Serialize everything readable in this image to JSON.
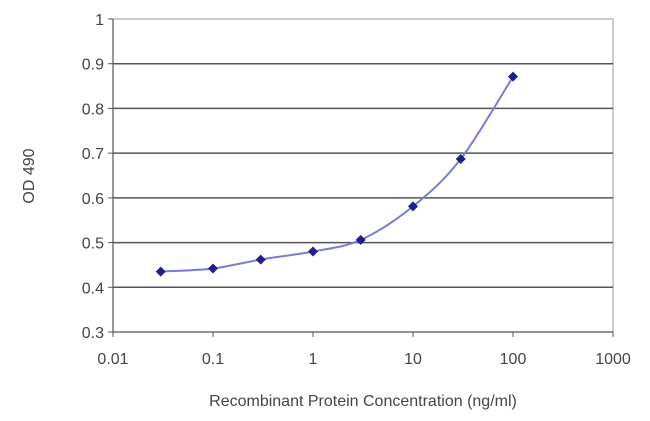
{
  "chart_data": {
    "type": "line",
    "x": [
      0.03,
      0.1,
      0.3,
      1,
      3,
      10,
      30,
      100
    ],
    "values": [
      0.435,
      0.442,
      0.462,
      0.48,
      0.506,
      0.581,
      0.687,
      0.871
    ],
    "xlabel": "Recombinant Protein Concentration (ng/ml)",
    "ylabel": "OD 490",
    "x_scale": "log",
    "xlim": [
      0.01,
      1000
    ],
    "ylim": [
      0.3,
      1
    ],
    "x_ticks": [
      "0.01",
      "0.1",
      "1",
      "10",
      "100",
      "1000"
    ],
    "y_ticks": [
      "0.3",
      "0.4",
      "0.5",
      "0.6",
      "0.7",
      "0.8",
      "0.9",
      "1"
    ],
    "grid": "horizontal",
    "line_color": "#7b7bd6",
    "marker_color": "#1f1f8c",
    "marker": "diamond"
  }
}
